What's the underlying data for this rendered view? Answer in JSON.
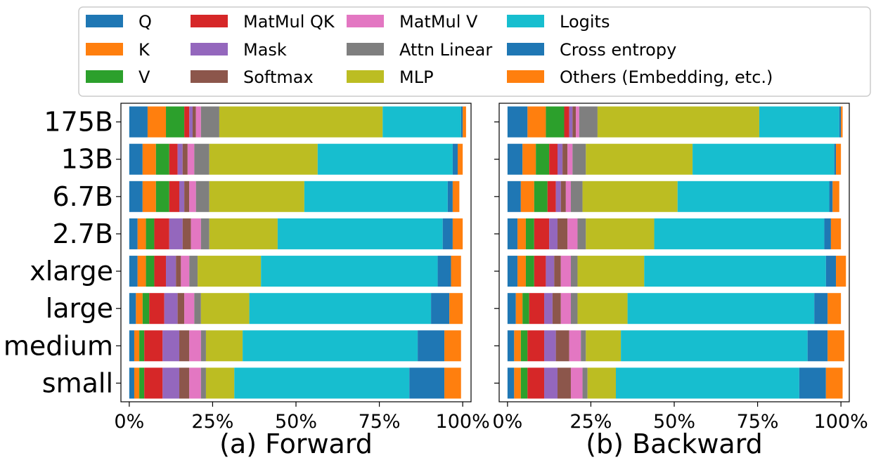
{
  "chart_data": [
    {
      "type": "bar",
      "orientation": "horizontal",
      "stacked": true,
      "title": "(a) Forward",
      "xlim": [
        0,
        100
      ],
      "x_tick_labels": [
        "0%",
        "25%",
        "50%",
        "75%",
        "100%"
      ],
      "categories": [
        "175B",
        "13B",
        "6.7B",
        "2.7B",
        "xlarge",
        "large",
        "medium",
        "small"
      ],
      "series": [
        {
          "name": "Q",
          "color": "#1f77b4",
          "values": [
            5.5,
            4.0,
            4.0,
            2.5,
            2.5,
            2.0,
            1.5,
            1.5
          ]
        },
        {
          "name": "K",
          "color": "#ff7f0e",
          "values": [
            5.5,
            4.0,
            4.0,
            2.5,
            2.5,
            2.0,
            1.5,
            1.5
          ]
        },
        {
          "name": "V",
          "color": "#2ca02c",
          "values": [
            5.5,
            4.0,
            4.0,
            2.5,
            2.5,
            2.0,
            1.5,
            1.5
          ]
        },
        {
          "name": "MatMul QK",
          "color": "#d62728",
          "values": [
            1.5,
            2.5,
            3.0,
            4.5,
            3.5,
            4.5,
            5.5,
            5.5
          ]
        },
        {
          "name": "Mask",
          "color": "#9467bd",
          "values": [
            1.0,
            1.5,
            1.5,
            4.0,
            3.0,
            4.0,
            5.0,
            5.0
          ]
        },
        {
          "name": "Softmax",
          "color": "#8c564b",
          "values": [
            1.0,
            1.5,
            1.5,
            2.5,
            1.5,
            2.0,
            3.0,
            3.0
          ]
        },
        {
          "name": "MatMul V",
          "color": "#e377c2",
          "values": [
            1.5,
            2.0,
            2.0,
            3.0,
            2.5,
            3.0,
            3.5,
            3.5
          ]
        },
        {
          "name": "Attn Linear",
          "color": "#7f7f7f",
          "values": [
            5.5,
            4.5,
            4.0,
            2.5,
            2.5,
            2.0,
            1.5,
            1.5
          ]
        },
        {
          "name": "MLP",
          "color": "#bcbd22",
          "values": [
            49.0,
            32.5,
            28.5,
            20.5,
            19.0,
            14.5,
            11.0,
            8.5
          ]
        },
        {
          "name": "Logits",
          "color": "#17becf",
          "values": [
            23.5,
            40.5,
            43.0,
            49.5,
            53.0,
            54.5,
            52.5,
            52.5
          ]
        },
        {
          "name": "Cross entropy",
          "color": "#1f77b4",
          "values": [
            0.5,
            1.5,
            1.5,
            3.0,
            4.0,
            5.5,
            8.0,
            10.5
          ]
        },
        {
          "name": "Others (Embedding, etc.)",
          "color": "#ff7f0e",
          "values": [
            1.0,
            1.5,
            2.0,
            3.0,
            3.0,
            4.0,
            5.0,
            5.0
          ]
        }
      ]
    },
    {
      "type": "bar",
      "orientation": "horizontal",
      "stacked": true,
      "title": "(b) Backward",
      "xlim": [
        0,
        100
      ],
      "x_tick_labels": [
        "0%",
        "25%",
        "50%",
        "75%",
        "100%"
      ],
      "categories": [
        "175B",
        "13B",
        "6.7B",
        "2.7B",
        "xlarge",
        "large",
        "medium",
        "small"
      ],
      "series": [
        {
          "name": "Q",
          "color": "#1f77b4",
          "values": [
            6.0,
            4.5,
            4.0,
            3.0,
            3.0,
            2.5,
            2.0,
            2.0
          ]
        },
        {
          "name": "K",
          "color": "#ff7f0e",
          "values": [
            5.5,
            4.0,
            4.0,
            2.5,
            2.5,
            2.0,
            2.0,
            2.0
          ]
        },
        {
          "name": "V",
          "color": "#2ca02c",
          "values": [
            5.5,
            4.0,
            4.0,
            2.5,
            2.5,
            2.0,
            2.0,
            2.0
          ]
        },
        {
          "name": "MatMul QK",
          "color": "#d62728",
          "values": [
            1.5,
            2.5,
            2.5,
            4.5,
            3.5,
            4.5,
            5.0,
            5.0
          ]
        },
        {
          "name": "Mask",
          "color": "#9467bd",
          "values": [
            1.0,
            1.5,
            1.5,
            2.5,
            2.5,
            2.5,
            3.5,
            4.0
          ]
        },
        {
          "name": "Softmax",
          "color": "#8c564b",
          "values": [
            1.0,
            1.5,
            1.5,
            3.0,
            2.0,
            2.5,
            4.0,
            4.0
          ]
        },
        {
          "name": "MatMul V",
          "color": "#e377c2",
          "values": [
            1.0,
            1.5,
            1.5,
            3.0,
            3.0,
            3.0,
            3.5,
            3.5
          ]
        },
        {
          "name": "Attn Linear",
          "color": "#7f7f7f",
          "values": [
            5.5,
            4.0,
            3.5,
            2.5,
            2.0,
            2.0,
            1.5,
            1.5
          ]
        },
        {
          "name": "MLP",
          "color": "#bcbd22",
          "values": [
            48.5,
            32.0,
            28.5,
            20.5,
            20.0,
            15.0,
            10.5,
            8.5
          ]
        },
        {
          "name": "Logits",
          "color": "#17becf",
          "values": [
            24.0,
            42.5,
            45.5,
            51.0,
            54.5,
            56.0,
            56.0,
            55.0
          ]
        },
        {
          "name": "Cross entropy",
          "color": "#1f77b4",
          "values": [
            0.5,
            0.5,
            1.0,
            2.0,
            3.0,
            4.0,
            6.0,
            8.0
          ]
        },
        {
          "name": "Others (Embedding, etc.)",
          "color": "#ff7f0e",
          "values": [
            0.5,
            1.5,
            2.0,
            3.0,
            3.0,
            4.0,
            5.0,
            5.0
          ]
        }
      ]
    }
  ]
}
